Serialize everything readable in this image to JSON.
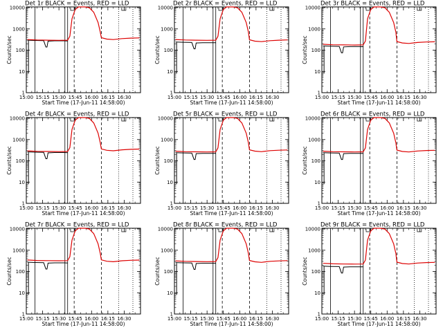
{
  "figure": {
    "xtitle": "Start Time (17-Jun-11 14:58:00)",
    "ytitle": "Counts/sec"
  },
  "chart_data": [
    {
      "type": "line",
      "title": "Det 1r BLACK = Events, RED = LLD",
      "xlabel": "Start Time (17-Jun-11 14:58:00)",
      "ylabel": "Counts/sec",
      "x_tick_labels": [
        "15:00",
        "15:15",
        "15:30",
        "15:45",
        "16:00",
        "16:15",
        "16:30"
      ],
      "y_tick_labels": [
        "1",
        "10",
        "100",
        "1000",
        "10000"
      ],
      "ylim": [
        1,
        10000
      ],
      "log_y": true,
      "series": [
        {
          "name": "Events",
          "color": "#000000"
        },
        {
          "name": "LLD",
          "color": "#dd0000"
        }
      ],
      "events_baseline": 280,
      "lld_baseline": 300,
      "lld_peak": 11000,
      "lld_tail": 350
    },
    {
      "type": "line",
      "title": "Det 2r BLACK = Events, RED = LLD",
      "xlabel": "Start Time (17-Jun-11 14:58:00)",
      "ylabel": "Counts/sec",
      "x_tick_labels": [
        "15:00",
        "15:15",
        "15:30",
        "15:45",
        "16:00",
        "16:15",
        "16:30"
      ],
      "y_tick_labels": [
        "1",
        "10",
        "100",
        "1000",
        "10000"
      ],
      "ylim": [
        1,
        10000
      ],
      "log_y": true,
      "series": [
        {
          "name": "Events",
          "color": "#000000"
        },
        {
          "name": "LLD",
          "color": "#dd0000"
        }
      ],
      "events_baseline": 230,
      "lld_baseline": 300,
      "lld_peak": 11000,
      "lld_tail": 280
    },
    {
      "type": "line",
      "title": "Det 3r BLACK = Events, RED = LLD",
      "xlabel": "Start Time (17-Jun-11 14:58:00)",
      "ylabel": "Counts/sec",
      "x_tick_labels": [
        "15:00",
        "15:15",
        "15:30",
        "15:45",
        "16:00",
        "16:15",
        "16:30"
      ],
      "y_tick_labels": [
        "1",
        "10",
        "100",
        "1000",
        "10000"
      ],
      "ylim": [
        1,
        10000
      ],
      "log_y": true,
      "series": [
        {
          "name": "Events",
          "color": "#000000"
        },
        {
          "name": "LLD",
          "color": "#dd0000"
        }
      ],
      "events_baseline": 150,
      "lld_baseline": 180,
      "lld_peak": 11000,
      "lld_tail": 230
    },
    {
      "type": "line",
      "title": "Det 4r BLACK = Events, RED = LLD",
      "xlabel": "Start Time (17-Jun-11 14:58:00)",
      "ylabel": "Counts/sec",
      "x_tick_labels": [
        "15:00",
        "15:15",
        "15:30",
        "15:45",
        "16:00",
        "16:15",
        "16:30"
      ],
      "y_tick_labels": [
        "1",
        "10",
        "100",
        "1000",
        "10000"
      ],
      "ylim": [
        1,
        10000
      ],
      "log_y": true,
      "series": [
        {
          "name": "Events",
          "color": "#000000"
        },
        {
          "name": "LLD",
          "color": "#dd0000"
        }
      ],
      "events_baseline": 250,
      "lld_baseline": 280,
      "lld_peak": 11000,
      "lld_tail": 330
    },
    {
      "type": "line",
      "title": "Det 5r BLACK = Events, RED = LLD",
      "xlabel": "Start Time (17-Jun-11 14:58:00)",
      "ylabel": "Counts/sec",
      "x_tick_labels": [
        "15:00",
        "15:15",
        "15:30",
        "15:45",
        "16:00",
        "16:15",
        "16:30"
      ],
      "y_tick_labels": [
        "1",
        "10",
        "100",
        "1000",
        "10000"
      ],
      "ylim": [
        1,
        10000
      ],
      "log_y": true,
      "series": [
        {
          "name": "Events",
          "color": "#000000"
        },
        {
          "name": "LLD",
          "color": "#dd0000"
        }
      ],
      "events_baseline": 230,
      "lld_baseline": 270,
      "lld_peak": 11000,
      "lld_tail": 300
    },
    {
      "type": "line",
      "title": "Det 6r BLACK = Events, RED = LLD",
      "xlabel": "Start Time (17-Jun-11 14:58:00)",
      "ylabel": "Counts/sec",
      "x_tick_labels": [
        "15:00",
        "15:15",
        "15:30",
        "15:45",
        "16:00",
        "16:15",
        "16:30"
      ],
      "y_tick_labels": [
        "1",
        "10",
        "100",
        "1000",
        "10000"
      ],
      "ylim": [
        1,
        10000
      ],
      "log_y": true,
      "series": [
        {
          "name": "Events",
          "color": "#000000"
        },
        {
          "name": "LLD",
          "color": "#dd0000"
        }
      ],
      "events_baseline": 230,
      "lld_baseline": 270,
      "lld_peak": 11000,
      "lld_tail": 290
    },
    {
      "type": "line",
      "title": "Det 7r BLACK = Events, RED = LLD",
      "xlabel": "Start Time (17-Jun-11 14:58:00)",
      "ylabel": "Counts/sec",
      "x_tick_labels": [
        "15:00",
        "15:15",
        "15:30",
        "15:45",
        "16:00",
        "16:15",
        "16:30"
      ],
      "y_tick_labels": [
        "1",
        "10",
        "100",
        "1000",
        "10000"
      ],
      "ylim": [
        1,
        10000
      ],
      "log_y": true,
      "series": [
        {
          "name": "Events",
          "color": "#000000"
        },
        {
          "name": "LLD",
          "color": "#dd0000"
        }
      ],
      "events_baseline": 260,
      "lld_baseline": 330,
      "lld_peak": 11000,
      "lld_tail": 320
    },
    {
      "type": "line",
      "title": "Det 8r BLACK = Events, RED = LLD",
      "xlabel": "Start Time (17-Jun-11 14:58:00)",
      "ylabel": "Counts/sec",
      "x_tick_labels": [
        "15:00",
        "15:15",
        "15:30",
        "15:45",
        "16:00",
        "16:15",
        "16:30"
      ],
      "y_tick_labels": [
        "1",
        "10",
        "100",
        "1000",
        "10000"
      ],
      "ylim": [
        1,
        10000
      ],
      "log_y": true,
      "series": [
        {
          "name": "Events",
          "color": "#000000"
        },
        {
          "name": "LLD",
          "color": "#dd0000"
        }
      ],
      "events_baseline": 250,
      "lld_baseline": 300,
      "lld_peak": 11000,
      "lld_tail": 300
    },
    {
      "type": "line",
      "title": "Det 9r BLACK = Events, RED = LLD",
      "xlabel": "Start Time (17-Jun-11 14:58:00)",
      "ylabel": "Counts/sec",
      "x_tick_labels": [
        "15:00",
        "15:15",
        "15:30",
        "15:45",
        "16:00",
        "16:15",
        "16:30"
      ],
      "y_tick_labels": [
        "1",
        "10",
        "100",
        "1000",
        "10000"
      ],
      "ylim": [
        1,
        10000
      ],
      "log_y": true,
      "series": [
        {
          "name": "Events",
          "color": "#000000"
        },
        {
          "name": "LLD",
          "color": "#dd0000"
        }
      ],
      "events_baseline": 170,
      "lld_baseline": 230,
      "lld_peak": 11000,
      "lld_tail": 250
    }
  ]
}
